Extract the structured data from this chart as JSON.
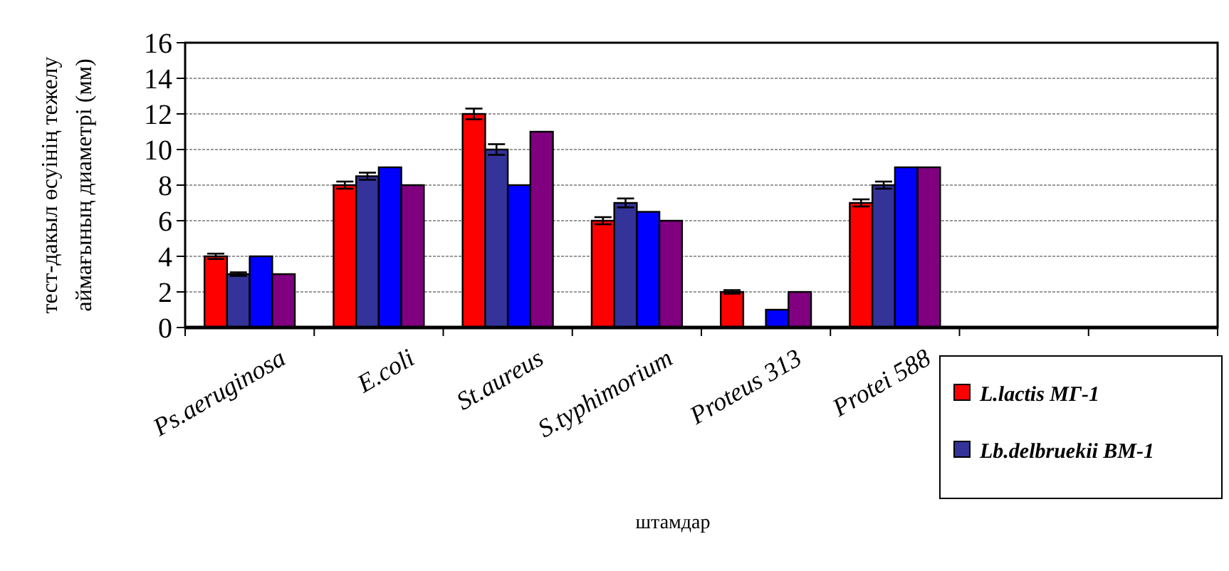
{
  "chart_data": {
    "type": "bar",
    "xlabel": "штамдар",
    "ylabel": "тест-дакыл  өсуінің тежелу\nаймағының диаметрі (мм)",
    "categories": [
      "Ps.aeruginosa",
      "E.coli",
      "St.aureus",
      "S.typhimorium",
      "Proteus 313",
      "Protei 588",
      null,
      null
    ],
    "series": [
      {
        "name": "L.lactis  МГ-1",
        "color": "#ff0000",
        "values": [
          4,
          8,
          12,
          6,
          2,
          7,
          null,
          null
        ],
        "errors": [
          0.15,
          0.2,
          0.3,
          0.2,
          0.1,
          0.2,
          null,
          null
        ]
      },
      {
        "name": "Lb.delbruekii  ВМ-1",
        "color": "#333399",
        "values": [
          3,
          8.5,
          10,
          7,
          0,
          8,
          null,
          null
        ],
        "errors": [
          0.1,
          0.2,
          0.3,
          0.25,
          null,
          0.2,
          null,
          null
        ]
      },
      {
        "color": "#0000ff",
        "values": [
          4,
          9,
          8,
          6.5,
          1,
          9,
          null,
          null
        ]
      },
      {
        "color": "#800080",
        "values": [
          3,
          8,
          11,
          6,
          2,
          9,
          null,
          null
        ]
      }
    ],
    "ylim": [
      0,
      16
    ],
    "yticks": [
      0,
      2,
      4,
      6,
      8,
      10,
      12,
      14,
      16
    ],
    "grid": "y",
    "legend": "bottom right"
  }
}
